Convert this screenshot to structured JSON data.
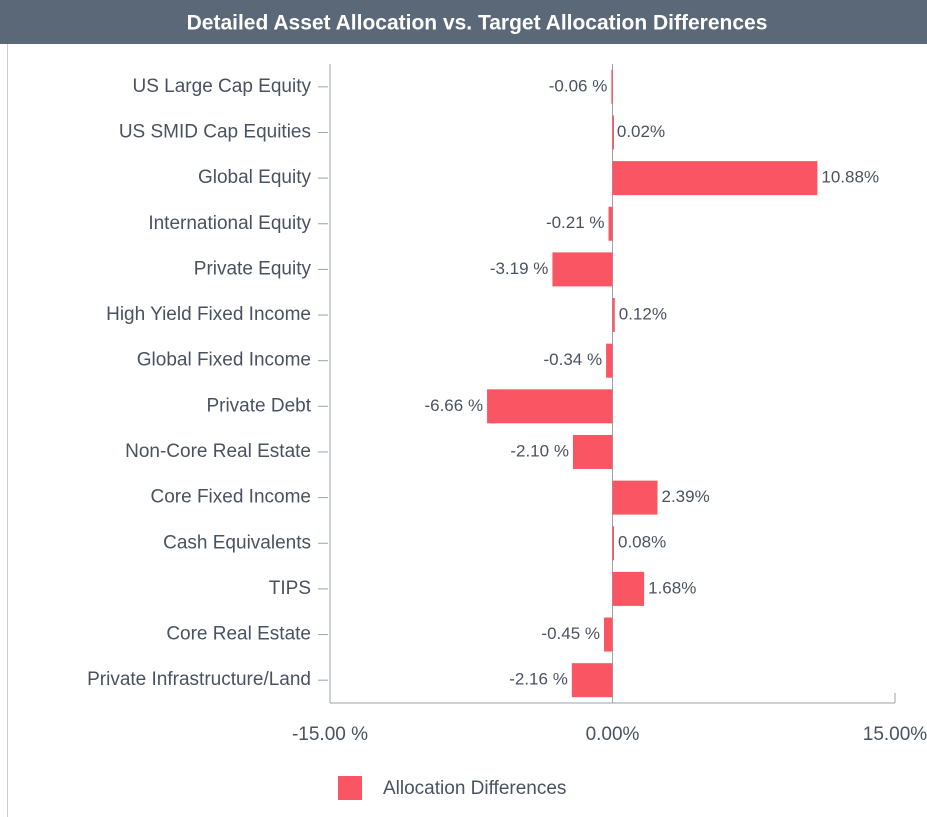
{
  "chart_data": {
    "type": "hbar",
    "title": "Detailed Asset Allocation vs. Target Allocation Differences",
    "categories": [
      "US Large Cap Equity",
      "US SMID Cap Equities",
      "Global Equity",
      "International Equity",
      "Private Equity",
      "High Yield Fixed Income",
      "Global Fixed Income",
      "Private Debt",
      "Non-Core Real Estate",
      "Core Fixed Income",
      "Cash Equivalents",
      "TIPS",
      "Core Real Estate",
      "Private Infrastructure/Land"
    ],
    "series": [
      {
        "name": "Allocation Differences",
        "color": "#f95563",
        "values": [
          -0.06,
          0.02,
          10.88,
          -0.21,
          -3.19,
          0.12,
          -0.34,
          -6.66,
          -2.1,
          2.39,
          0.08,
          1.68,
          -0.45,
          -2.16
        ],
        "value_labels": [
          "-0.06 %",
          "0.02%",
          "10.88%",
          "-0.21 %",
          "-3.19 %",
          "0.12%",
          "-0.34 %",
          "-6.66 %",
          "-2.10 %",
          "2.39%",
          "0.08%",
          "1.68%",
          "-0.45 %",
          "-2.16 %"
        ]
      }
    ],
    "xlim": [
      -15,
      15
    ],
    "xticks": [
      {
        "value": -15,
        "label": "-15.00 %"
      },
      {
        "value": 0,
        "label": "0.00%"
      },
      {
        "value": 15,
        "label": "15.00%"
      }
    ],
    "legend": "bottom"
  }
}
